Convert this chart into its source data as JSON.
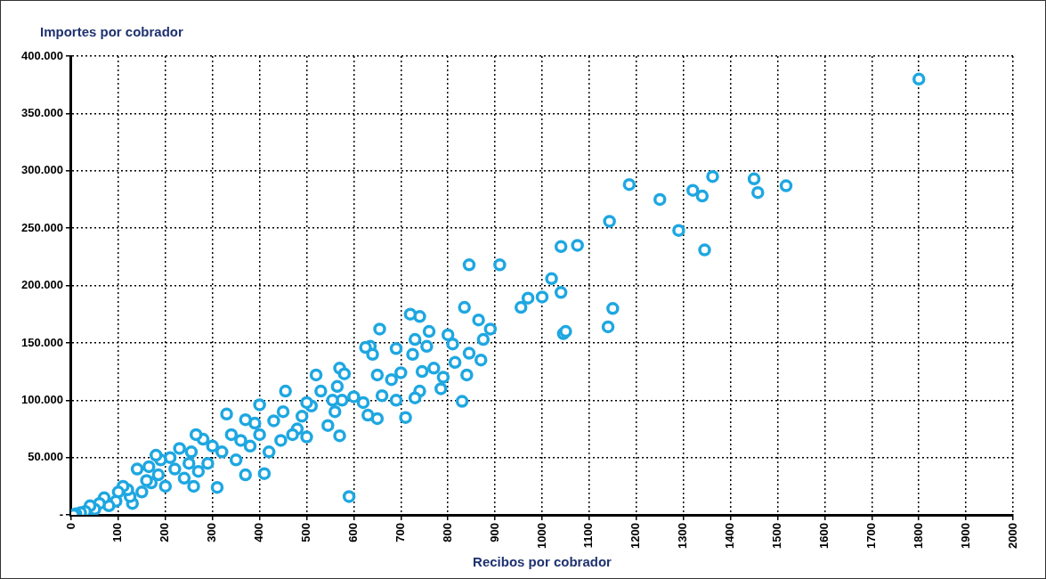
{
  "chart_data": {
    "type": "scatter",
    "ylabel": "Importes por cobrador",
    "xlabel": "Recibos por cobrador",
    "xlim": [
      0,
      2000
    ],
    "xticks": [
      0,
      100,
      200,
      300,
      400,
      500,
      600,
      700,
      800,
      900,
      1000,
      1100,
      1200,
      1300,
      1400,
      1500,
      1600,
      1700,
      1800,
      1900,
      2000
    ],
    "ylim": [
      0,
      400000
    ],
    "yticks": [
      {
        "value": 0,
        "label": "-"
      },
      {
        "value": 50000,
        "label": "50.000"
      },
      {
        "value": 100000,
        "label": "100.000"
      },
      {
        "value": 150000,
        "label": "150.000"
      },
      {
        "value": 200000,
        "label": "200.000"
      },
      {
        "value": 250000,
        "label": "250.000"
      },
      {
        "value": 300000,
        "label": "300.000"
      },
      {
        "value": 350000,
        "label": "350.000"
      },
      {
        "value": 400000,
        "label": "400.000"
      }
    ],
    "grid": true,
    "legend": false,
    "marker": "circle",
    "series": [
      {
        "color": "#1ea7e1",
        "x": [
          1800,
          1185,
          1250,
          1290,
          1320,
          1340,
          1345,
          1362,
          1450,
          1458,
          1518,
          1143,
          1140,
          1150,
          1040,
          1075,
          1040,
          1020,
          1045,
          1050,
          1000,
          970,
          955,
          910,
          845,
          890,
          875,
          865,
          870,
          835,
          845,
          840,
          830,
          800,
          810,
          815,
          790,
          785,
          770,
          760,
          755,
          740,
          720,
          725,
          730,
          740,
          745,
          730,
          710,
          700,
          690,
          680,
          690,
          655,
          635,
          625,
          640,
          650,
          660,
          650,
          630,
          620,
          600,
          590,
          570,
          580,
          565,
          575,
          560,
          570,
          555,
          545,
          530,
          520,
          510,
          500,
          500,
          490,
          480,
          470,
          455,
          450,
          445,
          430,
          420,
          410,
          400,
          400,
          390,
          380,
          370,
          370,
          360,
          350,
          340,
          330,
          320,
          310,
          300,
          290,
          280,
          270,
          265,
          260,
          255,
          250,
          240,
          230,
          220,
          210,
          200,
          190,
          185,
          180,
          170,
          165,
          160,
          150,
          140,
          130,
          125,
          120,
          110,
          100,
          95,
          80,
          70,
          60,
          50,
          40,
          30,
          20,
          10,
          5
        ],
        "values": [
          380000,
          288000,
          275000,
          248000,
          283000,
          278000,
          231000,
          295000,
          293000,
          281000,
          287000,
          256000,
          164000,
          180000,
          234000,
          235000,
          194000,
          206000,
          158000,
          160000,
          190000,
          189000,
          181000,
          218000,
          218000,
          162000,
          153000,
          170000,
          135000,
          181000,
          141000,
          122000,
          99000,
          157000,
          149000,
          133000,
          120000,
          110000,
          128000,
          160000,
          147000,
          173000,
          175000,
          140000,
          153000,
          108000,
          125000,
          102000,
          85000,
          124000,
          145000,
          118000,
          100000,
          162000,
          147000,
          146000,
          140000,
          122000,
          104000,
          84000,
          87000,
          98000,
          103000,
          16000,
          128000,
          123000,
          112000,
          100000,
          90000,
          69000,
          100000,
          78000,
          108000,
          122000,
          95000,
          98000,
          68000,
          86000,
          75000,
          70000,
          108000,
          90000,
          65000,
          82000,
          55000,
          36000,
          96000,
          70000,
          80000,
          60000,
          83000,
          35000,
          65000,
          48000,
          70000,
          88000,
          55000,
          24000,
          60000,
          45000,
          66000,
          38000,
          70000,
          25000,
          55000,
          45000,
          32000,
          58000,
          40000,
          50000,
          25000,
          48000,
          35000,
          52000,
          28000,
          42000,
          30000,
          20000,
          40000,
          10000,
          16000,
          22000,
          25000,
          20000,
          12000,
          8000,
          15000,
          10000,
          5000,
          8000,
          3000,
          2000,
          1000,
          0
        ]
      }
    ]
  }
}
